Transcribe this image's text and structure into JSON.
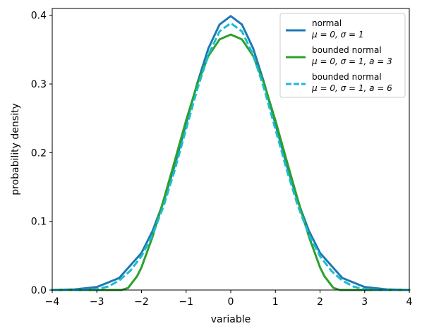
{
  "chart_data": {
    "type": "line",
    "xlabel": "variable",
    "ylabel": "probability density",
    "xlim": [
      -4,
      4
    ],
    "ylim": [
      0,
      0.41
    ],
    "xticks": [
      -4,
      -3,
      -2,
      -1,
      0,
      1,
      2,
      3,
      4
    ],
    "xtick_labels": [
      "−4",
      "−3",
      "−2",
      "−1",
      "0",
      "1",
      "2",
      "3",
      "4"
    ],
    "yticks": [
      0.0,
      0.1,
      0.2,
      0.3,
      0.4
    ],
    "ytick_labels": [
      "0.0",
      "0.1",
      "0.2",
      "0.3",
      "0.4"
    ],
    "legend_position": "top-right",
    "series": [
      {
        "name": "normal",
        "params": "μ = 0, σ = 1",
        "color": "#1f77b4",
        "style": "solid",
        "x": [
          -4.0,
          -3.5,
          -3.0,
          -2.5,
          -2.0,
          -1.75,
          -1.5,
          -1.25,
          -1.0,
          -0.75,
          -0.5,
          -0.25,
          0.0,
          0.25,
          0.5,
          0.75,
          1.0,
          1.25,
          1.5,
          1.75,
          2.0,
          2.5,
          3.0,
          3.5,
          4.0
        ],
        "y": [
          0.0001,
          0.0009,
          0.0044,
          0.0175,
          0.054,
          0.0863,
          0.1295,
          0.1826,
          0.242,
          0.3011,
          0.3521,
          0.3867,
          0.3989,
          0.3867,
          0.3521,
          0.3011,
          0.242,
          0.1826,
          0.1295,
          0.0863,
          0.054,
          0.0175,
          0.0044,
          0.0009,
          0.0001
        ]
      },
      {
        "name": "bounded normal",
        "params": "μ = 0, σ = 1, a = 3",
        "color": "#2ca02c",
        "style": "solid",
        "x": [
          -4.0,
          -3.0,
          -2.45,
          -2.3,
          -2.1,
          -2.0,
          -1.75,
          -1.5,
          -1.25,
          -1.0,
          -0.75,
          -0.5,
          -0.25,
          0.0,
          0.25,
          0.5,
          0.75,
          1.0,
          1.25,
          1.5,
          1.75,
          2.0,
          2.1,
          2.3,
          2.45,
          3.0,
          4.0
        ],
        "y": [
          0.0,
          0.0,
          0.0,
          0.003,
          0.02,
          0.033,
          0.078,
          0.132,
          0.189,
          0.247,
          0.3,
          0.341,
          0.365,
          0.372,
          0.365,
          0.341,
          0.3,
          0.247,
          0.189,
          0.132,
          0.078,
          0.033,
          0.02,
          0.003,
          0.0,
          0.0,
          0.0
        ]
      },
      {
        "name": "bounded normal",
        "params": "μ = 0, σ = 1, a = 6",
        "color": "#17becf",
        "style": "dashed",
        "x": [
          -4.0,
          -3.5,
          -3.25,
          -3.0,
          -2.75,
          -2.5,
          -2.25,
          -2.0,
          -1.75,
          -1.5,
          -1.25,
          -1.0,
          -0.75,
          -0.5,
          -0.25,
          0.0,
          0.25,
          0.5,
          0.75,
          1.0,
          1.25,
          1.5,
          1.75,
          2.0,
          2.25,
          2.5,
          2.75,
          3.0,
          3.25,
          3.5,
          4.0
        ],
        "y": [
          0.0,
          0.0,
          0.0002,
          0.0012,
          0.005,
          0.0137,
          0.0281,
          0.0493,
          0.0806,
          0.1232,
          0.1759,
          0.2344,
          0.2925,
          0.3427,
          0.3767,
          0.3887,
          0.3767,
          0.3427,
          0.2925,
          0.2344,
          0.1759,
          0.1232,
          0.0806,
          0.0493,
          0.0281,
          0.0137,
          0.005,
          0.0012,
          0.0002,
          0.0,
          0.0
        ]
      }
    ]
  }
}
